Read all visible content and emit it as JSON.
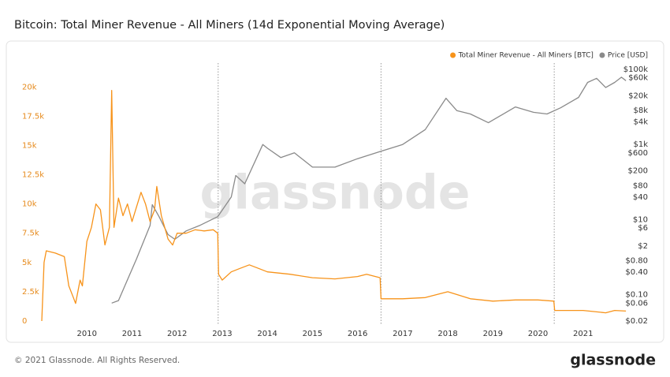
{
  "chart_data": {
    "type": "line",
    "title": "Bitcoin: Total Miner Revenue - All Miners (14d Exponential Moving Average)",
    "watermark": "glassnode",
    "footer": "© 2021 Glassnode. All Rights Reserved.",
    "logo": "glassnode",
    "xlim": [
      2009,
      2022
    ],
    "xticks": [
      2010,
      2011,
      2012,
      2013,
      2014,
      2015,
      2016,
      2017,
      2018,
      2019,
      2020,
      2021
    ],
    "ylim": [
      0,
      21500
    ],
    "yticks": [
      0,
      {
        "value": 2500,
        "label": "2.5k"
      },
      {
        "value": 5000,
        "label": "5k"
      },
      {
        "value": 7500,
        "label": "7.5k"
      },
      {
        "value": 10000,
        "label": "10k"
      },
      {
        "value": 12500,
        "label": "12.5k"
      },
      {
        "value": 15000,
        "label": "15k"
      },
      {
        "value": 17500,
        "label": "17.5k"
      },
      {
        "value": 20000,
        "label": "20k"
      }
    ],
    "y2lim": [
      0.02,
      100000
    ],
    "y2scale": "log",
    "y2ticks": [
      {
        "value": 100000,
        "label": "$100k"
      },
      {
        "value": 60000,
        "label": "$60k"
      },
      {
        "value": 20000,
        "label": "$20k"
      },
      {
        "value": 8000,
        "label": "$8k"
      },
      {
        "value": 4000,
        "label": "$4k"
      },
      {
        "value": 1000,
        "label": "$1k"
      },
      {
        "value": 600,
        "label": "$600"
      },
      {
        "value": 200,
        "label": "$200"
      },
      {
        "value": 80,
        "label": "$80"
      },
      {
        "value": 40,
        "label": "$40"
      },
      {
        "value": 10,
        "label": "$10"
      },
      {
        "value": 6,
        "label": "$6"
      },
      {
        "value": 2,
        "label": "$2"
      },
      {
        "value": 0.8,
        "label": "$0.80"
      },
      {
        "value": 0.4,
        "label": "$0.40"
      },
      {
        "value": 0.1,
        "label": "$0.10"
      },
      {
        "value": 0.06,
        "label": "$0.06"
      },
      {
        "value": 0.02,
        "label": "$0.02"
      }
    ],
    "vlines": [
      2012.91,
      2016.52,
      2020.36
    ],
    "series": [
      {
        "name": "Total Miner Revenue - All Miners [BTC]",
        "color": "#f7931a",
        "x": [
          2009.0,
          2009.05,
          2009.1,
          2009.3,
          2009.5,
          2009.6,
          2009.7,
          2009.75,
          2009.85,
          2009.9,
          2010.0,
          2010.1,
          2010.2,
          2010.3,
          2010.4,
          2010.5,
          2010.55,
          2010.6,
          2010.7,
          2010.8,
          2010.9,
          2011.0,
          2011.2,
          2011.3,
          2011.4,
          2011.5,
          2011.55,
          2011.65,
          2011.8,
          2011.9,
          2012.0,
          2012.2,
          2012.4,
          2012.6,
          2012.8,
          2012.9,
          2012.92,
          2013.0,
          2013.2,
          2013.4,
          2013.6,
          2013.8,
          2014.0,
          2014.5,
          2015.0,
          2015.5,
          2016.0,
          2016.2,
          2016.5,
          2016.52,
          2017.0,
          2017.5,
          2018.0,
          2018.5,
          2019.0,
          2019.5,
          2020.0,
          2020.35,
          2020.37,
          2021.0,
          2021.5,
          2021.7,
          2021.95
        ],
        "values": [
          0,
          5000,
          6000,
          5800,
          5500,
          3000,
          2000,
          1500,
          3500,
          3000,
          6800,
          8000,
          10000,
          9500,
          6500,
          8000,
          19700,
          8000,
          10500,
          9000,
          10000,
          8500,
          11000,
          10000,
          8500,
          9500,
          11500,
          9000,
          7000,
          6500,
          7500,
          7500,
          7800,
          7700,
          7800,
          7500,
          4000,
          3500,
          4200,
          4500,
          4800,
          4500,
          4200,
          4000,
          3700,
          3600,
          3800,
          4000,
          3700,
          1900,
          1900,
          2000,
          2500,
          1900,
          1700,
          1800,
          1800,
          1700,
          900,
          900,
          700,
          900,
          850
        ]
      },
      {
        "name": "Price [USD]",
        "color": "#8a8a8a",
        "axis": "y2",
        "x": [
          2010.55,
          2010.7,
          2010.9,
          2011.1,
          2011.4,
          2011.45,
          2011.6,
          2011.8,
          2011.95,
          2012.2,
          2012.5,
          2012.9,
          2013.2,
          2013.3,
          2013.5,
          2013.9,
          2014.0,
          2014.3,
          2014.6,
          2015.0,
          2015.5,
          2016.0,
          2016.5,
          2017.0,
          2017.5,
          2017.96,
          2018.2,
          2018.5,
          2018.9,
          2019.5,
          2019.9,
          2020.2,
          2020.5,
          2020.9,
          2021.1,
          2021.3,
          2021.5,
          2021.7,
          2021.85,
          2021.95
        ],
        "values": [
          0.06,
          0.07,
          0.25,
          0.9,
          7,
          25,
          12,
          4,
          3,
          5,
          7,
          12,
          40,
          150,
          90,
          1000,
          800,
          450,
          600,
          250,
          250,
          420,
          650,
          1000,
          2500,
          17000,
          8000,
          6500,
          3800,
          10000,
          7200,
          6500,
          9500,
          18000,
          45000,
          58000,
          33000,
          45000,
          62000,
          50000
        ]
      }
    ]
  }
}
